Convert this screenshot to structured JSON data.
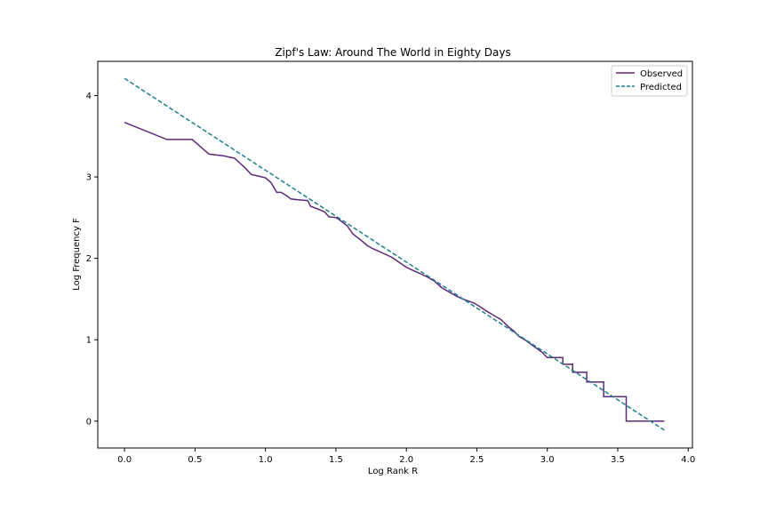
{
  "chart_data": {
    "type": "line",
    "title": "Zipf's Law: Around The World in Eighty Days",
    "xlabel": "Log Rank R",
    "ylabel": "Log Frequency F",
    "xlim": [
      -0.19,
      4.03
    ],
    "ylim": [
      -0.33,
      4.42
    ],
    "x_ticks": [
      0.0,
      0.5,
      1.0,
      1.5,
      2.0,
      2.5,
      3.0,
      3.5,
      4.0
    ],
    "x_tick_labels": [
      "0.0",
      "0.5",
      "1.0",
      "1.5",
      "2.0",
      "2.5",
      "3.0",
      "3.5",
      "4.0"
    ],
    "y_ticks": [
      0,
      1,
      2,
      3,
      4
    ],
    "y_tick_labels": [
      "0",
      "1",
      "2",
      "3",
      "4"
    ],
    "legend_position": "upper-right",
    "series": [
      {
        "name": "Observed",
        "color": "#5c2a7a",
        "style": "solid",
        "points": [
          [
            0.0,
            3.67
          ],
          [
            0.3,
            3.46
          ],
          [
            0.48,
            3.46
          ],
          [
            0.6,
            3.28
          ],
          [
            0.7,
            3.26
          ],
          [
            0.78,
            3.23
          ],
          [
            0.85,
            3.12
          ],
          [
            0.9,
            3.03
          ],
          [
            0.95,
            3.01
          ],
          [
            1.0,
            2.99
          ],
          [
            1.04,
            2.93
          ],
          [
            1.08,
            2.81
          ],
          [
            1.11,
            2.81
          ],
          [
            1.15,
            2.77
          ],
          [
            1.18,
            2.73
          ],
          [
            1.23,
            2.72
          ],
          [
            1.3,
            2.71
          ],
          [
            1.32,
            2.64
          ],
          [
            1.38,
            2.6
          ],
          [
            1.42,
            2.57
          ],
          [
            1.45,
            2.51
          ],
          [
            1.5,
            2.5
          ],
          [
            1.52,
            2.48
          ],
          [
            1.58,
            2.4
          ],
          [
            1.62,
            2.3
          ],
          [
            1.65,
            2.26
          ],
          [
            1.68,
            2.22
          ],
          [
            1.72,
            2.16
          ],
          [
            1.76,
            2.12
          ],
          [
            1.8,
            2.09
          ],
          [
            1.85,
            2.05
          ],
          [
            1.9,
            2.01
          ],
          [
            1.95,
            1.95
          ],
          [
            2.0,
            1.89
          ],
          [
            2.05,
            1.85
          ],
          [
            2.1,
            1.81
          ],
          [
            2.15,
            1.77
          ],
          [
            2.2,
            1.72
          ],
          [
            2.25,
            1.64
          ],
          [
            2.3,
            1.59
          ],
          [
            2.35,
            1.54
          ],
          [
            2.4,
            1.5
          ],
          [
            2.45,
            1.47
          ],
          [
            2.48,
            1.45
          ],
          [
            2.52,
            1.41
          ],
          [
            2.56,
            1.36
          ],
          [
            2.6,
            1.32
          ],
          [
            2.64,
            1.28
          ],
          [
            2.67,
            1.25
          ],
          [
            2.7,
            1.2
          ],
          [
            2.73,
            1.15
          ],
          [
            2.76,
            1.11
          ],
          [
            2.8,
            1.04
          ],
          [
            2.84,
            1.0
          ],
          [
            2.88,
            0.95
          ],
          [
            2.92,
            0.9
          ],
          [
            2.96,
            0.85
          ],
          [
            3.0,
            0.78
          ],
          [
            3.05,
            0.78
          ],
          [
            3.05,
            0.78
          ],
          [
            3.11,
            0.78
          ],
          [
            3.11,
            0.7
          ],
          [
            3.18,
            0.7
          ],
          [
            3.18,
            0.6
          ],
          [
            3.28,
            0.6
          ],
          [
            3.28,
            0.48
          ],
          [
            3.4,
            0.48
          ],
          [
            3.4,
            0.3
          ],
          [
            3.56,
            0.3
          ],
          [
            3.56,
            0.0
          ],
          [
            3.83,
            0.0
          ]
        ]
      },
      {
        "name": "Predicted",
        "color": "#1f7f8c",
        "style": "dashed",
        "points": [
          [
            0.0,
            4.21
          ],
          [
            3.83,
            -0.11
          ]
        ]
      }
    ]
  }
}
